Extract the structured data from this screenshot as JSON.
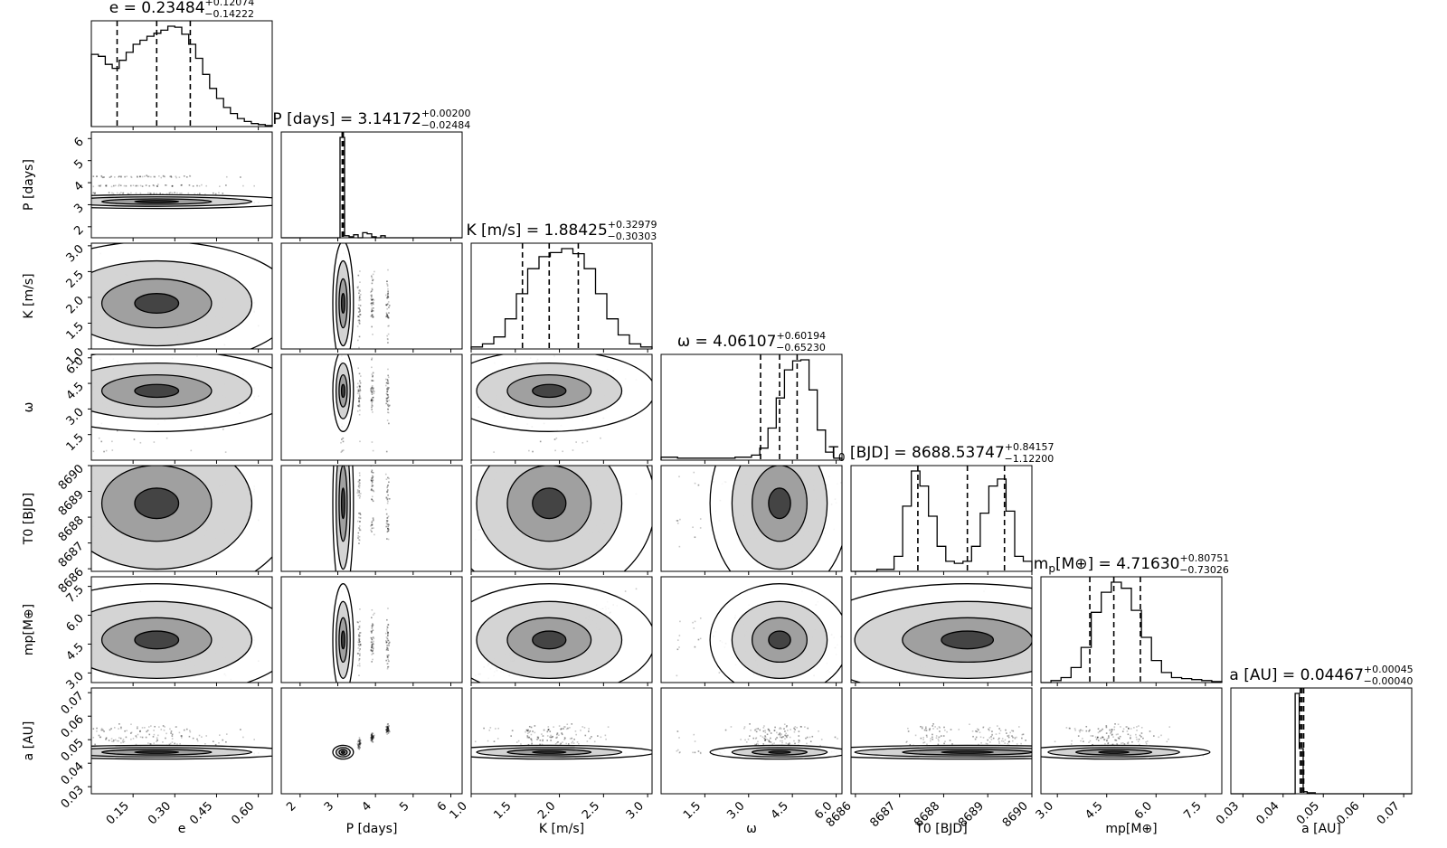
{
  "chart_data": {
    "type": "corner",
    "parameters": [
      {
        "key": "e",
        "label": "e",
        "tex": "",
        "ticks": [
          "0.15",
          "0.30",
          "0.45",
          "0.60"
        ],
        "range": [
          0.0,
          0.65
        ],
        "title": {
          "prefix": "e = ",
          "value": "0.23484",
          "plus": "+0.12074",
          "minus": "−0.14222"
        },
        "median": 0.23484,
        "lo": 0.09262,
        "hi": 0.35558
      },
      {
        "key": "P",
        "label": "P [days]",
        "tex": "",
        "ticks": [
          "2",
          "3",
          "4",
          "5",
          "6"
        ],
        "range": [
          1.5,
          6.3
        ],
        "title": {
          "prefix": "P [days] = ",
          "value": "3.14172",
          "plus": "+0.00200",
          "minus": "−0.02484"
        },
        "median": 3.14172,
        "lo": 3.11688,
        "hi": 3.14372
      },
      {
        "key": "K",
        "label": "K [m/s]",
        "tex": "",
        "ticks": [
          "1.0",
          "1.5",
          "2.0",
          "2.5",
          "3.0"
        ],
        "range": [
          1.0,
          3.05
        ],
        "title": {
          "prefix": "K [m/s] = ",
          "value": "1.88425",
          "plus": "+0.32979",
          "minus": "−0.30303"
        },
        "median": 1.88425,
        "lo": 1.58122,
        "hi": 2.21404
      },
      {
        "key": "w",
        "label": "ω",
        "tex": "",
        "ticks": [
          "1.5",
          "3.0",
          "4.5",
          "6.0"
        ],
        "range": [
          0.0,
          6.2
        ],
        "title": {
          "prefix": "ω = ",
          "value": "4.06107",
          "plus": "+0.60194",
          "minus": "−0.65230"
        },
        "median": 4.06107,
        "lo": 3.40877,
        "hi": 4.66301
      },
      {
        "key": "T0",
        "label": "T",
        "tex": "0 [BJD]",
        "ticks": [
          "8686",
          "8687",
          "8688",
          "8689",
          "8690"
        ],
        "range": [
          8685.9,
          8690.0
        ],
        "title": {
          "prefix": "T",
          "sub": "0",
          "rest": " [BJD] = ",
          "value": "8688.53747",
          "plus": "+0.84157",
          "minus": "−1.12200"
        },
        "median": 8688.53747,
        "lo": 8687.41547,
        "hi": 8689.37904
      },
      {
        "key": "mp",
        "label": "m",
        "tex": "p[M⊕]",
        "ticks": [
          "3.0",
          "4.5",
          "6.0",
          "7.5"
        ],
        "range": [
          2.5,
          8.0
        ],
        "title": {
          "prefix": "m",
          "sub": "p",
          "rest": "[M⊕] = ",
          "value": "4.71630",
          "plus": "+0.80751",
          "minus": "−0.73026"
        },
        "median": 4.7163,
        "lo": 3.98604,
        "hi": 5.52381
      },
      {
        "key": "a",
        "label": "a [AU]",
        "tex": "",
        "ticks": [
          "0.03",
          "0.04",
          "0.05",
          "0.06",
          "0.07"
        ],
        "range": [
          0.027,
          0.072
        ],
        "title": {
          "prefix": "a [AU] = ",
          "value": "0.04467",
          "plus": "+0.00045",
          "minus": "−0.00040"
        },
        "median": 0.04467,
        "lo": 0.04427,
        "hi": 0.04512
      }
    ],
    "histograms": {
      "e": [
        0.72,
        0.7,
        0.62,
        0.58,
        0.66,
        0.74,
        0.82,
        0.86,
        0.9,
        0.93,
        0.96,
        1.0,
        0.99,
        0.92,
        0.82,
        0.68,
        0.52,
        0.38,
        0.28,
        0.19,
        0.13,
        0.08,
        0.05,
        0.03,
        0.02,
        0.01
      ],
      "P": [
        0,
        0,
        0,
        0,
        0,
        0,
        0,
        0,
        0,
        0,
        0,
        0,
        0,
        1.0,
        0.02,
        0.01,
        0.03,
        0.0,
        0.05,
        0.04,
        0.01,
        0.0,
        0.02,
        0,
        0,
        0,
        0,
        0,
        0,
        0,
        0,
        0,
        0,
        0,
        0,
        0,
        0,
        0,
        0,
        0
      ],
      "K": [
        0.02,
        0.05,
        0.12,
        0.3,
        0.55,
        0.8,
        0.92,
        0.96,
        1.0,
        0.95,
        0.8,
        0.55,
        0.3,
        0.14,
        0.05,
        0.02
      ],
      "w": [
        0.03,
        0.03,
        0.02,
        0.02,
        0.02,
        0.02,
        0.02,
        0.02,
        0.02,
        0.03,
        0.03,
        0.05,
        0.12,
        0.32,
        0.62,
        0.9,
        0.99,
        1.0,
        0.7,
        0.3,
        0.08,
        0.02
      ],
      "T0": [
        0.0,
        0.0,
        0.0,
        0.02,
        0.02,
        0.15,
        0.65,
        1.0,
        0.85,
        0.55,
        0.25,
        0.1,
        0.08,
        0.1,
        0.25,
        0.58,
        0.85,
        0.92,
        0.6,
        0.15,
        0.1
      ],
      "mp": [
        0.0,
        0.02,
        0.05,
        0.15,
        0.35,
        0.7,
        0.9,
        1.0,
        0.94,
        0.72,
        0.45,
        0.22,
        0.1,
        0.05,
        0.04,
        0.03,
        0.02,
        0.01
      ],
      "a": [
        0,
        0,
        0,
        0,
        0,
        0,
        0,
        0,
        0,
        0,
        0,
        0,
        0,
        0,
        0,
        0,
        1.0,
        0.45,
        0.02,
        0.01,
        0.01,
        0,
        0,
        0,
        0,
        0,
        0,
        0,
        0,
        0,
        0,
        0,
        0,
        0,
        0,
        0,
        0,
        0,
        0,
        0,
        0,
        0,
        0,
        0,
        0
      ]
    }
  }
}
